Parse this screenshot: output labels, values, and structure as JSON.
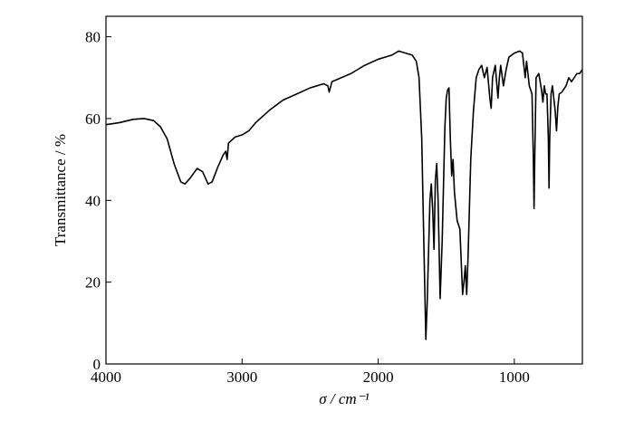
{
  "chart_data": {
    "type": "line",
    "xlabel": "σ / cm⁻¹",
    "ylabel": "Transmittance / %",
    "xlim": [
      4000,
      500
    ],
    "xticks": [
      4000,
      3000,
      2000,
      1000
    ],
    "ylim": [
      0,
      85
    ],
    "yticks": [
      0,
      20,
      40,
      60,
      80
    ],
    "color": "#000000",
    "x": [
      4000,
      3900,
      3800,
      3720,
      3650,
      3600,
      3550,
      3500,
      3450,
      3420,
      3380,
      3330,
      3290,
      3250,
      3220,
      3180,
      3140,
      3120,
      3110,
      3100,
      3050,
      3000,
      2950,
      2900,
      2800,
      2700,
      2600,
      2500,
      2400,
      2370,
      2360,
      2340,
      2200,
      2100,
      2000,
      1900,
      1850,
      1800,
      1750,
      1720,
      1700,
      1680,
      1665,
      1650,
      1640,
      1620,
      1610,
      1600,
      1590,
      1580,
      1570,
      1560,
      1545,
      1530,
      1510,
      1500,
      1490,
      1480,
      1470,
      1460,
      1450,
      1440,
      1420,
      1400,
      1390,
      1380,
      1370,
      1360,
      1350,
      1340,
      1320,
      1300,
      1280,
      1260,
      1240,
      1220,
      1200,
      1180,
      1170,
      1160,
      1140,
      1120,
      1110,
      1100,
      1080,
      1060,
      1040,
      1000,
      960,
      940,
      920,
      910,
      890,
      870,
      860,
      855,
      850,
      840,
      820,
      800,
      790,
      780,
      770,
      760,
      750,
      745,
      740,
      730,
      720,
      710,
      700,
      690,
      680,
      670,
      650,
      620,
      600,
      580,
      560,
      540,
      520,
      500
    ],
    "values": [
      58.5,
      59,
      59.8,
      60,
      59.5,
      58,
      55,
      49,
      44.5,
      44,
      45.5,
      47.8,
      47,
      44,
      44.5,
      48,
      51,
      52,
      50,
      54,
      55.5,
      56,
      57,
      59,
      62,
      64.5,
      66,
      67.5,
      68.5,
      68,
      66.5,
      69,
      71,
      73,
      74.5,
      75.5,
      76.5,
      76,
      75.5,
      74,
      70,
      55,
      30,
      6,
      15,
      40,
      44,
      38,
      28,
      45,
      49,
      40,
      16,
      30,
      58,
      65,
      67,
      67.5,
      55,
      46,
      50,
      42,
      35,
      33,
      25,
      17,
      20,
      24,
      17,
      26,
      50,
      62,
      70,
      72,
      73,
      70,
      72.5,
      65,
      62.5,
      70,
      73,
      65,
      70,
      73,
      68,
      72,
      75,
      76,
      76.5,
      76,
      70,
      74,
      68,
      66,
      50,
      38,
      50,
      70,
      71,
      67,
      64,
      68,
      66,
      66,
      55,
      43,
      55,
      66,
      68,
      65,
      62,
      57,
      63,
      66,
      66.5,
      68,
      70,
      69,
      70,
      71,
      71,
      72
    ]
  }
}
